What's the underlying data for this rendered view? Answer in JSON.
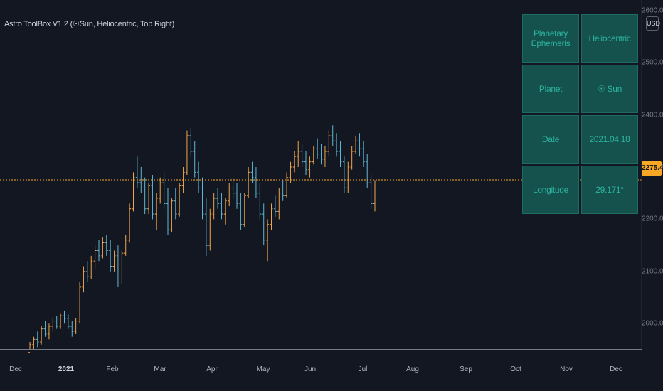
{
  "indicator": {
    "title": "Astro ToolBox V1.2 (☉Sun, Heliocentric, Top Right)"
  },
  "currency": "USD",
  "current_price": "2275.4",
  "ephemeris_table": [
    {
      "label": "Planetary Ephemeris",
      "value": "Heliocentric"
    },
    {
      "label": "Planet",
      "value": "☉ Sun"
    },
    {
      "label": "Date",
      "value": "2021.04.18"
    },
    {
      "label": "Longitude",
      "value": "29.171°"
    }
  ],
  "colors": {
    "background": "#131722",
    "up": "#f0a54a",
    "down": "#5fb7d4",
    "price_line": "#f9a825",
    "table_bg": "#15514d",
    "table_text": "#2bb39e"
  },
  "chart_data": {
    "type": "bar",
    "price_axis": [
      "2600.0",
      "2500.0",
      "2400.0",
      "2300.0",
      "2200.0",
      "2100.0",
      "2000.0"
    ],
    "time_axis": [
      "Dec",
      "2021",
      "Feb",
      "Mar",
      "Apr",
      "May",
      "Jun",
      "Jul",
      "Aug",
      "Sep",
      "Oct",
      "Nov",
      "Dec"
    ],
    "ylim": [
      1950,
      2620
    ],
    "current_value": 2275.4,
    "series": [
      [
        1945,
        1965,
        1935,
        1960
      ],
      [
        1960,
        1975,
        1950,
        1970
      ],
      [
        1970,
        1985,
        1955,
        1965
      ],
      [
        1965,
        1995,
        1960,
        1990
      ],
      [
        1990,
        2005,
        1975,
        1980
      ],
      [
        1980,
        2000,
        1970,
        1995
      ],
      [
        1995,
        2010,
        1985,
        2005
      ],
      [
        2005,
        2015,
        1990,
        1995
      ],
      [
        1995,
        2020,
        1990,
        2015
      ],
      [
        2015,
        2025,
        2000,
        2010
      ],
      [
        2010,
        2018,
        1990,
        1995
      ],
      [
        1995,
        2005,
        1975,
        1985
      ],
      [
        1985,
        2010,
        1980,
        2005
      ],
      [
        2005,
        2080,
        2000,
        2070
      ],
      [
        2070,
        2110,
        2060,
        2100
      ],
      [
        2100,
        2120,
        2080,
        2090
      ],
      [
        2090,
        2130,
        2085,
        2120
      ],
      [
        2120,
        2150,
        2105,
        2140
      ],
      [
        2140,
        2160,
        2120,
        2130
      ],
      [
        2130,
        2165,
        2125,
        2155
      ],
      [
        2155,
        2170,
        2130,
        2140
      ],
      [
        2140,
        2160,
        2100,
        2110
      ],
      [
        2110,
        2140,
        2100,
        2130
      ],
      [
        2130,
        2150,
        2070,
        2080
      ],
      [
        2080,
        2140,
        2075,
        2135
      ],
      [
        2135,
        2170,
        2130,
        2160
      ],
      [
        2160,
        2230,
        2155,
        2220
      ],
      [
        2220,
        2290,
        2215,
        2280
      ],
      [
        2280,
        2320,
        2260,
        2270
      ],
      [
        2270,
        2300,
        2250,
        2260
      ],
      [
        2260,
        2280,
        2210,
        2220
      ],
      [
        2220,
        2270,
        2210,
        2265
      ],
      [
        2265,
        2285,
        2200,
        2210
      ],
      [
        2210,
        2250,
        2180,
        2240
      ],
      [
        2240,
        2280,
        2230,
        2270
      ],
      [
        2270,
        2290,
        2220,
        2230
      ],
      [
        2230,
        2260,
        2170,
        2180
      ],
      [
        2180,
        2240,
        2175,
        2235
      ],
      [
        2235,
        2260,
        2200,
        2210
      ],
      [
        2210,
        2270,
        2205,
        2265
      ],
      [
        2265,
        2300,
        2250,
        2290
      ],
      [
        2290,
        2370,
        2285,
        2360
      ],
      [
        2360,
        2375,
        2320,
        2330
      ],
      [
        2330,
        2350,
        2280,
        2290
      ],
      [
        2290,
        2310,
        2250,
        2260
      ],
      [
        2260,
        2280,
        2200,
        2210
      ],
      [
        2210,
        2240,
        2130,
        2150
      ],
      [
        2150,
        2220,
        2140,
        2210
      ],
      [
        2210,
        2250,
        2200,
        2240
      ],
      [
        2240,
        2260,
        2220,
        2230
      ],
      [
        2230,
        2250,
        2200,
        2210
      ],
      [
        2210,
        2240,
        2190,
        2235
      ],
      [
        2235,
        2270,
        2225,
        2260
      ],
      [
        2260,
        2280,
        2240,
        2250
      ],
      [
        2250,
        2270,
        2220,
        2230
      ],
      [
        2230,
        2250,
        2180,
        2190
      ],
      [
        2190,
        2250,
        2185,
        2245
      ],
      [
        2245,
        2300,
        2240,
        2290
      ],
      [
        2290,
        2310,
        2270,
        2280
      ],
      [
        2280,
        2300,
        2240,
        2250
      ],
      [
        2250,
        2270,
        2200,
        2210
      ],
      [
        2210,
        2230,
        2150,
        2160
      ],
      [
        2160,
        2200,
        2120,
        2190
      ],
      [
        2190,
        2230,
        2180,
        2220
      ],
      [
        2220,
        2245,
        2205,
        2215
      ],
      [
        2215,
        2260,
        2200,
        2250
      ],
      [
        2250,
        2275,
        2235,
        2245
      ],
      [
        2245,
        2290,
        2240,
        2280
      ],
      [
        2280,
        2310,
        2270,
        2300
      ],
      [
        2300,
        2330,
        2290,
        2320
      ],
      [
        2320,
        2350,
        2300,
        2330
      ],
      [
        2330,
        2345,
        2300,
        2310
      ],
      [
        2310,
        2330,
        2285,
        2295
      ],
      [
        2295,
        2320,
        2280,
        2310
      ],
      [
        2310,
        2340,
        2305,
        2335
      ],
      [
        2335,
        2355,
        2315,
        2325
      ],
      [
        2325,
        2345,
        2305,
        2315
      ],
      [
        2315,
        2340,
        2300,
        2330
      ],
      [
        2330,
        2370,
        2320,
        2360
      ],
      [
        2360,
        2380,
        2340,
        2350
      ],
      [
        2350,
        2365,
        2320,
        2330
      ],
      [
        2330,
        2350,
        2300,
        2310
      ],
      [
        2310,
        2320,
        2250,
        2260
      ],
      [
        2260,
        2310,
        2250,
        2300
      ],
      [
        2300,
        2340,
        2295,
        2330
      ],
      [
        2330,
        2360,
        2325,
        2350
      ],
      [
        2350,
        2365,
        2320,
        2335
      ],
      [
        2335,
        2350,
        2300,
        2310
      ],
      [
        2310,
        2325,
        2260,
        2270
      ],
      [
        2270,
        2285,
        2220,
        2230
      ],
      [
        2230,
        2275,
        2215,
        2260
      ]
    ]
  }
}
